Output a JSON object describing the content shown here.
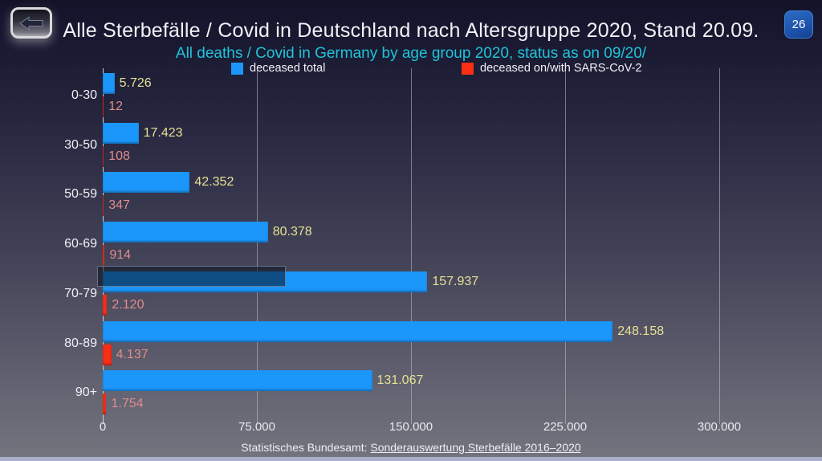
{
  "window": {
    "page_badge": "26"
  },
  "header": {
    "title": "Alle Sterbefälle / Covid in Deutschland nach Altersgruppe 2020, Stand 20.09.",
    "subtitle": "All deaths / Covid in Germany by age group 2020, status as on 09/20/"
  },
  "legend": {
    "items": [
      {
        "label": "deceased total",
        "color": "#1b97fb"
      },
      {
        "label": "deceased on/with SARS-CoV-2",
        "color": "#f92e15"
      }
    ]
  },
  "chart_data": {
    "type": "bar",
    "orientation": "horizontal",
    "title": "Alle Sterbefälle / Covid in Deutschland nach Altersgruppe 2020, Stand 20.09.",
    "subtitle": "All deaths / Covid in Germany by age group 2020, status as on 09/20/",
    "categories": [
      "0-30",
      "30-50",
      "50-59",
      "60-69",
      "70-79",
      "80-89",
      "90+"
    ],
    "series": [
      {
        "name": "deceased total",
        "color": "#1b97fb",
        "label_color": "#e5e093",
        "values": [
          5726,
          17423,
          42352,
          80378,
          157937,
          248158,
          131067
        ],
        "value_labels": [
          "5.726",
          "17.423",
          "42.352",
          "80.378",
          "157.937",
          "248.158",
          "131.067"
        ]
      },
      {
        "name": "deceased on/with SARS-CoV-2",
        "color": "#f92e15",
        "label_color": "#e08d8a",
        "values": [
          12,
          108,
          347,
          914,
          2120,
          4137,
          1754
        ],
        "value_labels": [
          "12",
          "108",
          "347",
          "914",
          "2.120",
          "4.137",
          "1.754"
        ]
      }
    ],
    "xlim": [
      0,
      300000
    ],
    "xticks": [
      {
        "value": 0,
        "label": "0"
      },
      {
        "value": 75000,
        "label": "75.000"
      },
      {
        "value": 150000,
        "label": "150.000"
      },
      {
        "value": 225000,
        "label": "225.000"
      },
      {
        "value": 300000,
        "label": "300.000"
      }
    ],
    "grid": true,
    "legend_position": "top"
  },
  "footer": {
    "source_prefix": "Statistisches Bundesamt:",
    "source_link": "Sonderauswertung Sterbefälle 2016–2020"
  },
  "colors": {
    "subtitle": "#1fc4d8",
    "bar_total": "#1b97fb",
    "bar_covid": "#f92e15",
    "value_label_total": "#e5e093",
    "value_label_covid": "#e08d8a"
  }
}
